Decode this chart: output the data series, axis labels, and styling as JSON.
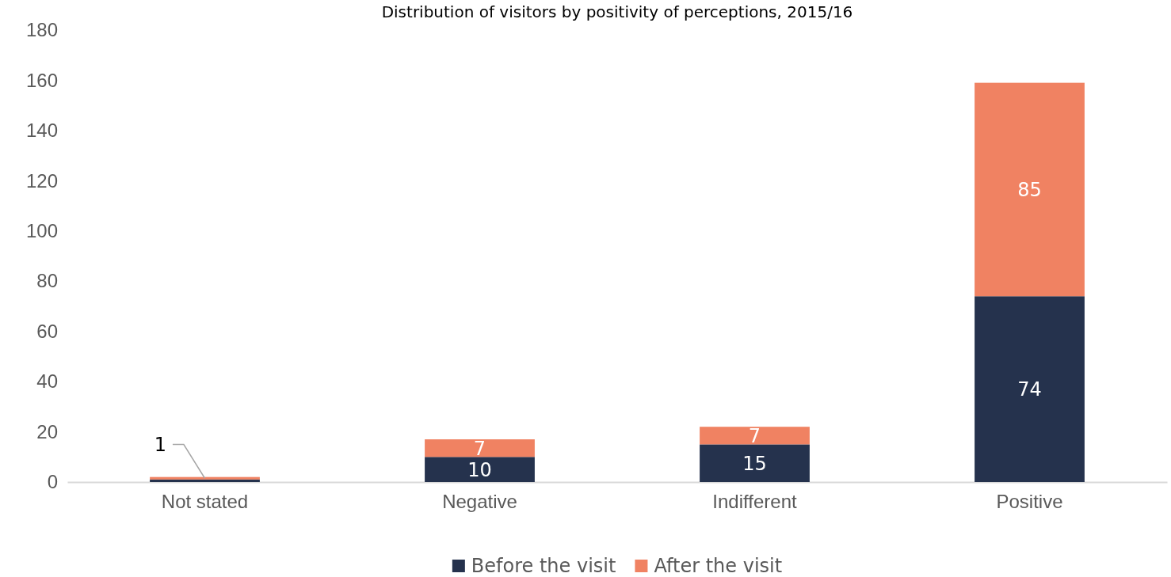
{
  "chart_data": {
    "type": "bar",
    "title": "Distribution of visitors by positivity of perceptions, 2015/16",
    "categories": [
      "Not stated",
      "Negative",
      "Indifferent",
      "Positive"
    ],
    "stacked": true,
    "series": [
      {
        "name": "Before the visit",
        "color": "#25324d",
        "values": [
          1,
          10,
          15,
          74
        ],
        "value_labels": [
          null,
          "10",
          "15",
          "74"
        ]
      },
      {
        "name": "After the visit",
        "color": "#f08262",
        "values": [
          1,
          7,
          7,
          85
        ],
        "value_labels": [
          "1",
          "7",
          "7",
          "85"
        ]
      }
    ],
    "ylim": [
      0,
      180
    ],
    "yticks": [
      0,
      20,
      40,
      60,
      80,
      100,
      120,
      140,
      160,
      180
    ],
    "legend": "bottom"
  }
}
